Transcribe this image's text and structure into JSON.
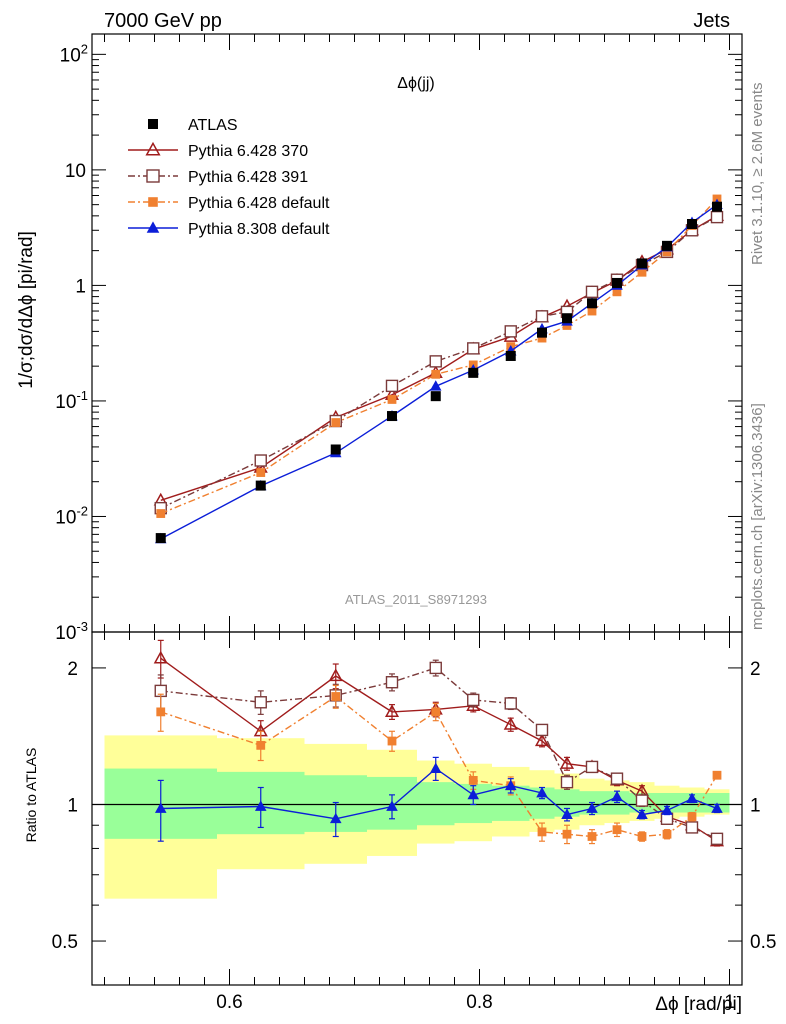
{
  "header": {
    "left": "7000 GeV pp",
    "right": "Jets"
  },
  "side_text": {
    "rivet": "Rivet 3.1.10, ≥ 2.6M events",
    "mcplots": "mcplots.cern.ch [arXiv:1306.3436]"
  },
  "chart_data": [
    {
      "type": "scatter",
      "title": "Δϕ(jj)",
      "ylabel": "1/σ;dσ/dΔϕ [pi/rad]",
      "xlabel": "",
      "yscale": "log",
      "xlim": [
        0.49,
        1.01
      ],
      "ylim": [
        0.001,
        150
      ],
      "watermark": "ATLAS_2011_S8971293",
      "legend_position": "top-left",
      "y_tick_labels": [
        "10⁻³",
        "10⁻²",
        "10⁻¹",
        "1",
        "10",
        "10²"
      ],
      "y_ticks": [
        0.001,
        0.01,
        0.1,
        1,
        10,
        100
      ],
      "x": [
        0.545,
        0.625,
        0.685,
        0.73,
        0.765,
        0.795,
        0.825,
        0.85,
        0.87,
        0.89,
        0.91,
        0.93,
        0.95,
        0.97,
        0.99
      ],
      "series": [
        {
          "name": "ATLAS",
          "color": "#000000",
          "marker": "square-filled",
          "line": "none",
          "values": [
            0.0065,
            0.0185,
            0.038,
            0.074,
            0.11,
            0.175,
            0.245,
            0.39,
            0.52,
            0.7,
            1.05,
            1.55,
            2.2,
            3.4,
            4.8
          ]
        },
        {
          "name": "Pythia 6.428 370",
          "color": "#a01c1c",
          "marker": "triangle-open",
          "line": "solid",
          "values": [
            0.0138,
            0.0265,
            0.072,
            0.113,
            0.175,
            0.28,
            0.36,
            0.53,
            0.66,
            0.86,
            1.1,
            1.6,
            2.05,
            3.0,
            4.0
          ]
        },
        {
          "name": "Pythia 6.428 391",
          "color": "#7b3a3a",
          "marker": "square-open",
          "line": "dashdot",
          "values": [
            0.0118,
            0.0305,
            0.067,
            0.135,
            0.22,
            0.285,
            0.4,
            0.54,
            0.59,
            0.88,
            1.12,
            1.5,
            1.95,
            3.0,
            3.9
          ]
        },
        {
          "name": "Pythia 6.428 default",
          "color": "#f08030",
          "marker": "square-filled-small",
          "line": "dashdot",
          "values": [
            0.0106,
            0.024,
            0.065,
            0.103,
            0.17,
            0.205,
            0.295,
            0.35,
            0.45,
            0.6,
            0.88,
            1.3,
            1.95,
            3.3,
            5.6
          ]
        },
        {
          "name": "Pythia 8.308 default",
          "color": "#0b1ed8",
          "marker": "triangle-filled",
          "line": "solid",
          "values": [
            0.0064,
            0.0184,
            0.0355,
            0.074,
            0.134,
            0.185,
            0.27,
            0.42,
            0.49,
            0.7,
            1.0,
            1.5,
            2.15,
            3.5,
            5.0
          ]
        }
      ]
    },
    {
      "type": "scatter",
      "title": "",
      "ylabel": "Ratio to ATLAS",
      "xlabel": "Δϕ [rad/pi]",
      "yscale": "log",
      "xlim": [
        0.49,
        1.01
      ],
      "ylim": [
        0.4,
        2.4
      ],
      "x_tick_labels": [
        "0.6",
        "0.8",
        "1"
      ],
      "x_ticks": [
        0.6,
        0.8,
        1.0
      ],
      "y_tick_labels": [
        "0.5",
        "1",
        "2"
      ],
      "y_ticks": [
        0.5,
        1,
        2
      ],
      "bands": {
        "edges": [
          0.5,
          0.59,
          0.66,
          0.71,
          0.75,
          0.78,
          0.81,
          0.84,
          0.86,
          0.88,
          0.9,
          0.92,
          0.94,
          0.96,
          0.98,
          1.0
        ],
        "yellow_lower": [
          0.62,
          0.72,
          0.74,
          0.77,
          0.82,
          0.83,
          0.85,
          0.87,
          0.88,
          0.9,
          0.91,
          0.92,
          0.93,
          0.94,
          0.95
        ],
        "yellow_upper": [
          1.42,
          1.4,
          1.36,
          1.32,
          1.25,
          1.23,
          1.21,
          1.19,
          1.17,
          1.14,
          1.13,
          1.12,
          1.1,
          1.09,
          1.08
        ],
        "green_lower": [
          0.84,
          0.86,
          0.87,
          0.88,
          0.9,
          0.91,
          0.92,
          0.93,
          0.94,
          0.95,
          0.95,
          0.96,
          0.96,
          0.96,
          0.96
        ],
        "green_upper": [
          1.2,
          1.18,
          1.16,
          1.15,
          1.12,
          1.11,
          1.1,
          1.09,
          1.08,
          1.07,
          1.07,
          1.06,
          1.06,
          1.06,
          1.06
        ],
        "yellow_color": "#ffff99",
        "green_color": "#99ff99"
      },
      "x": [
        0.545,
        0.625,
        0.685,
        0.73,
        0.765,
        0.795,
        0.825,
        0.85,
        0.87,
        0.89,
        0.91,
        0.93,
        0.95,
        0.97,
        0.99
      ],
      "series": [
        {
          "name": "Pythia 6.428 370",
          "color": "#a01c1c",
          "marker": "triangle-open",
          "line": "solid",
          "values": [
            2.1,
            1.45,
            1.92,
            1.6,
            1.62,
            1.65,
            1.5,
            1.38,
            1.23,
            1.21,
            1.13,
            1.07,
            0.94,
            0.9,
            0.83
          ],
          "err": [
            0.2,
            0.08,
            0.12,
            0.06,
            0.06,
            0.05,
            0.05,
            0.04,
            0.04,
            0.03,
            0.03,
            0.03,
            0.03,
            0.03,
            0.02
          ]
        },
        {
          "name": "Pythia 6.428 391",
          "color": "#7b3a3a",
          "marker": "square-open",
          "line": "dashdot",
          "values": [
            1.78,
            1.68,
            1.74,
            1.86,
            2.0,
            1.7,
            1.67,
            1.46,
            1.12,
            1.21,
            1.14,
            1.02,
            0.93,
            0.89,
            0.84
          ],
          "err": [
            0.15,
            0.1,
            0.1,
            0.08,
            0.08,
            0.06,
            0.05,
            0.04,
            0.04,
            0.03,
            0.03,
            0.03,
            0.02,
            0.02,
            0.02
          ]
        },
        {
          "name": "Pythia 6.428 default",
          "color": "#f08030",
          "marker": "square-filled-small",
          "line": "dashdot",
          "values": [
            1.6,
            1.35,
            1.73,
            1.38,
            1.6,
            1.13,
            1.1,
            0.87,
            0.86,
            0.85,
            0.88,
            0.85,
            0.86,
            0.94,
            1.16
          ],
          "err": [
            0.15,
            0.1,
            0.1,
            0.07,
            0.07,
            0.05,
            0.05,
            0.04,
            0.04,
            0.03,
            0.03,
            0.02,
            0.02,
            0.02,
            0.02
          ]
        },
        {
          "name": "Pythia 8.308 default",
          "color": "#0b1ed8",
          "marker": "triangle-filled",
          "line": "solid",
          "values": [
            0.98,
            0.99,
            0.93,
            0.99,
            1.2,
            1.05,
            1.1,
            1.06,
            0.95,
            0.98,
            1.04,
            0.95,
            0.97,
            1.03,
            0.98
          ],
          "err": [
            0.15,
            0.1,
            0.08,
            0.06,
            0.07,
            0.05,
            0.04,
            0.03,
            0.03,
            0.03,
            0.03,
            0.02,
            0.02,
            0.02,
            0.02
          ]
        }
      ]
    }
  ]
}
